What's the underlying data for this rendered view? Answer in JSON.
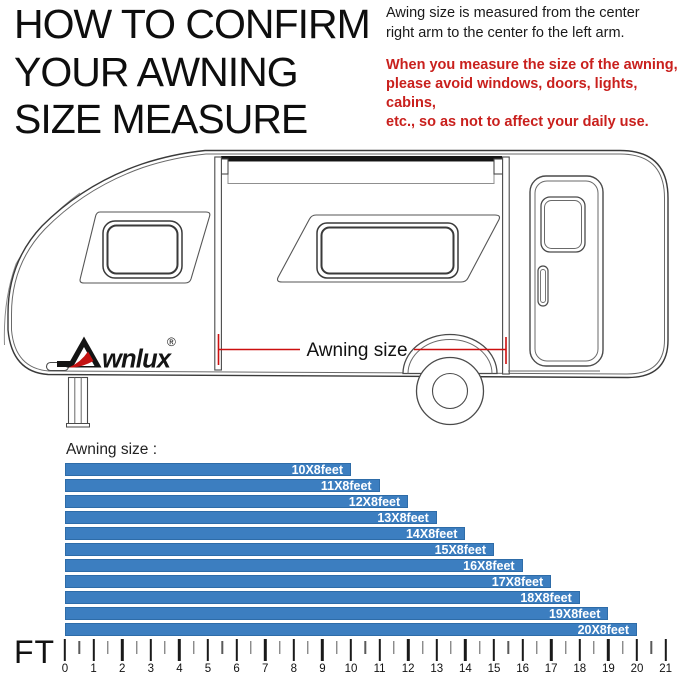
{
  "header": {
    "title_lines": [
      "HOW TO CONFIRM",
      "YOUR AWNING",
      "SIZE MEASURE"
    ],
    "note_lines": [
      "Awing size is measured from the center",
      "right arm to the center fo the left arm."
    ],
    "warning_lines": [
      "When you measure the size of the awning,",
      "please avoid windows, doors, lights, cabins,",
      "etc., so as not to affect your daily use."
    ]
  },
  "diagram": {
    "brand_text": "wnlux",
    "brand_registered": "®",
    "measure_label": "Awning size"
  },
  "chart_data": {
    "type": "bar",
    "orientation": "horizontal",
    "title": "Awning size :",
    "categories": [
      "10X8feet",
      "11X8feet",
      "12X8feet",
      "13X8feet",
      "14X8feet",
      "15X8feet",
      "16X8feet",
      "17X8feet",
      "18X8feet",
      "19X8feet",
      "20X8feet"
    ],
    "values": [
      10,
      11,
      12,
      13,
      14,
      15,
      16,
      17,
      18,
      19,
      20
    ],
    "value_unit": "feet",
    "axis_label": "FT",
    "xlim": [
      0,
      21
    ],
    "tick_step": 1,
    "minor_tick_step": 0.5,
    "grid": false,
    "bar_color": "#3c7ec0",
    "bar_border_color": "#2e6ca8",
    "label_color": "#ffffff"
  },
  "colors": {
    "warning_red": "#c9201d",
    "measure_line_red": "#cc0f0f",
    "bar_blue": "#3c7ec0"
  }
}
